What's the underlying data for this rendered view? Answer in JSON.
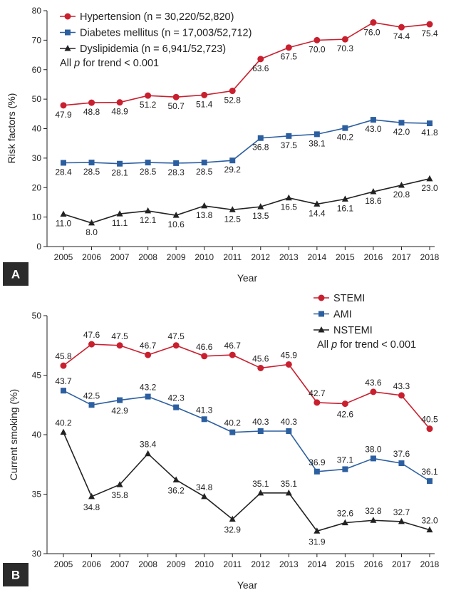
{
  "chart_data": [
    {
      "type": "line",
      "panel_label": "A",
      "xlabel": "Year",
      "ylabel": "Risk factors (%)",
      "ylim": [
        0,
        80
      ],
      "yticks": [
        0,
        10,
        20,
        30,
        40,
        50,
        60,
        70,
        80
      ],
      "categories": [
        "2005",
        "2006",
        "2007",
        "2008",
        "2009",
        "2010",
        "2011",
        "2012",
        "2013",
        "2014",
        "2015",
        "2016",
        "2017",
        "2018"
      ],
      "note": "All p for trend < 0.001",
      "note_parts": {
        "pre": "All ",
        "p": "p",
        "post": " for trend < 0.001"
      },
      "legend_position": "top-left",
      "series": [
        {
          "name": "Hypertension (n = 30,220/52,820)",
          "color": "#c8202f",
          "marker": "circle",
          "values": [
            47.9,
            48.8,
            48.9,
            51.2,
            50.7,
            51.4,
            52.8,
            63.6,
            67.5,
            70.0,
            70.3,
            76.0,
            74.4,
            75.4
          ],
          "labels": [
            "47.9",
            "48.8",
            "48.9",
            "51.2",
            "50.7",
            "51.4",
            "52.8",
            "63.6",
            "67.5",
            "70.0",
            "70.3",
            "76.0",
            "74.4",
            "75.4"
          ]
        },
        {
          "name": "Diabetes mellitus (n = 17,003/52,712)",
          "color": "#2c5fa0",
          "marker": "square",
          "values": [
            28.4,
            28.5,
            28.1,
            28.5,
            28.3,
            28.5,
            29.2,
            36.8,
            37.5,
            38.1,
            40.2,
            43.0,
            42.0,
            41.8
          ],
          "labels": [
            "28.4",
            "28.5",
            "28.1",
            "28.5",
            "28.3",
            "28.5",
            "29.2",
            "36.8",
            "37.5",
            "38.1",
            "40.2",
            "43.0",
            "42.0",
            "41.8"
          ]
        },
        {
          "name": "Dyslipidemia (n = 6,941/52,723)",
          "color": "#222222",
          "marker": "triangle",
          "values": [
            11.0,
            8.0,
            11.1,
            12.1,
            10.6,
            13.8,
            12.5,
            13.5,
            16.5,
            14.4,
            16.1,
            18.6,
            20.8,
            23.0
          ],
          "labels": [
            "11.0",
            "8.0",
            "11.1",
            "12.1",
            "10.6",
            "13.8",
            "12.5",
            "13.5",
            "16.5",
            "14.4",
            "16.1",
            "18.6",
            "20.8",
            "23.0"
          ]
        }
      ]
    },
    {
      "type": "line",
      "panel_label": "B",
      "xlabel": "Year",
      "ylabel": "Current smoking (%)",
      "ylim": [
        30,
        50
      ],
      "yticks": [
        30,
        35,
        40,
        45,
        50
      ],
      "categories": [
        "2005",
        "2006",
        "2007",
        "2008",
        "2009",
        "2010",
        "2011",
        "2012",
        "2013",
        "2014",
        "2015",
        "2016",
        "2017",
        "2018"
      ],
      "note": "All p for trend < 0.001",
      "note_parts": {
        "pre": "All ",
        "p": "p",
        "post": " for trend < 0.001"
      },
      "legend_position": "top-right",
      "series": [
        {
          "name": "STEMI",
          "color": "#c8202f",
          "marker": "circle",
          "values": [
            45.8,
            47.6,
            47.5,
            46.7,
            47.5,
            46.6,
            46.7,
            45.6,
            45.9,
            42.7,
            42.6,
            43.6,
            43.3,
            40.5
          ],
          "labels": [
            "45.8",
            "47.6",
            "47.5",
            "46.7",
            "47.5",
            "46.6",
            "46.7",
            "45.6",
            "45.9",
            "42.7",
            "42.6",
            "43.6",
            "43.3",
            "40.5"
          ]
        },
        {
          "name": "AMI",
          "color": "#2c5fa0",
          "marker": "square",
          "values": [
            43.7,
            42.5,
            42.9,
            43.2,
            42.3,
            41.3,
            40.2,
            40.3,
            40.3,
            36.9,
            37.1,
            38.0,
            37.6,
            36.1
          ],
          "labels": [
            "43.7",
            "42.5",
            "42.9",
            "43.2",
            "42.3",
            "41.3",
            "40.2",
            "40.3",
            "40.3",
            "36.9",
            "37.1",
            "38.0",
            "37.6",
            "36.1"
          ]
        },
        {
          "name": "NSTEMI",
          "color": "#222222",
          "marker": "triangle",
          "values": [
            40.2,
            34.8,
            35.8,
            38.4,
            36.2,
            34.8,
            32.9,
            35.1,
            35.1,
            31.9,
            32.6,
            32.8,
            32.7,
            32.0
          ],
          "labels": [
            "40.2",
            "34.8",
            "35.8",
            "38.4",
            "36.2",
            "34.8",
            "32.9",
            "35.1",
            "35.1",
            "31.9",
            "32.6",
            "32.8",
            "32.7",
            "32.0"
          ]
        }
      ]
    }
  ]
}
